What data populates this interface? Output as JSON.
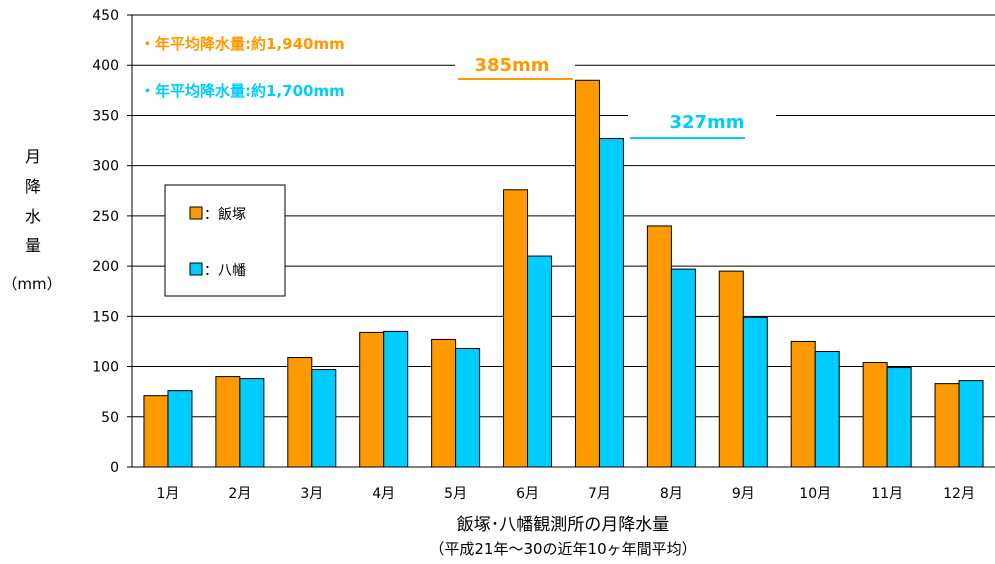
{
  "chart_data": {
    "type": "bar",
    "title": "飯塚･八幡観測所の月降水量",
    "subtitle": "（平成21年～30の近年10ヶ年間平均）",
    "ylabel_chars": [
      "月",
      "降",
      "水",
      "量"
    ],
    "ylabel_unit": "（mm）",
    "categories": [
      "1月",
      "2月",
      "3月",
      "4月",
      "5月",
      "6月",
      "7月",
      "8月",
      "9月",
      "10月",
      "11月",
      "12月"
    ],
    "series": [
      {
        "name": "：飯塚",
        "color": "#FF9900",
        "values": [
          71,
          90,
          109,
          134,
          127,
          276,
          385,
          240,
          195,
          125,
          104,
          83
        ]
      },
      {
        "name": "：八幡",
        "color": "#00CCFF",
        "values": [
          76,
          88,
          97,
          135,
          118,
          210,
          327,
          197,
          149,
          115,
          99,
          86
        ]
      }
    ],
    "ylim": [
      0,
      450
    ],
    "yticks": [
      0,
      50,
      100,
      150,
      200,
      250,
      300,
      350,
      400,
      450
    ],
    "grid": true,
    "legend_position": "left",
    "annotations": [
      {
        "text": "・年平均降水量:約1,940mm",
        "color": "#FF9900"
      },
      {
        "text": "・年平均降水量:約1,700mm",
        "color": "#00CCFF"
      },
      {
        "text": "385mm",
        "color": "#FF9900"
      },
      {
        "text": "327mm",
        "color": "#00CCFF"
      }
    ]
  }
}
